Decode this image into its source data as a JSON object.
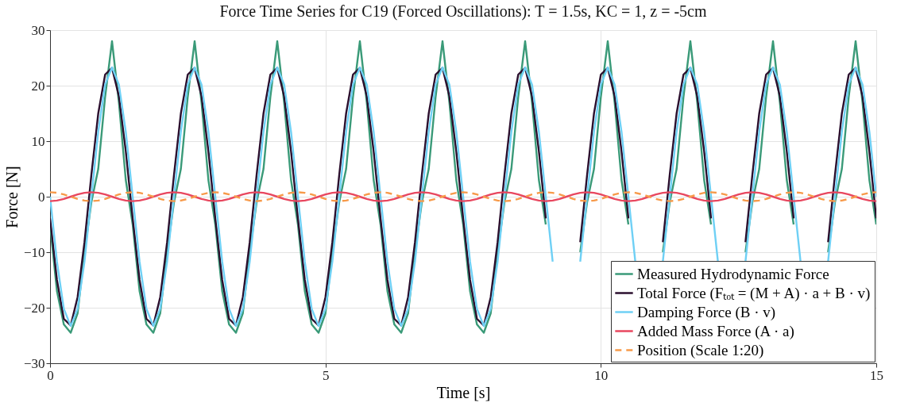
{
  "chart_data": {
    "type": "line",
    "title": "Force Time Series for C19 (Forced Oscillations): T = 1.5s, KC = 1, z = -5cm",
    "xlabel": "Time [s]",
    "ylabel": "Force [N]",
    "xlim": [
      0,
      15
    ],
    "xticks": [
      0,
      5,
      10,
      15
    ],
    "ylim": [
      -30,
      30
    ],
    "yticks": [
      -30,
      -20,
      -10,
      0,
      10,
      20,
      30
    ],
    "grid": true,
    "legend": "bottom right",
    "marker": "none",
    "x": [
      0,
      0.125,
      0.25,
      0.375,
      0.5,
      0.625,
      0.75,
      0.875,
      1,
      1.125,
      1.25,
      1.375,
      1.5,
      1.625,
      1.75,
      1.875,
      2,
      2.125,
      2.25,
      2.375,
      2.5,
      2.625,
      2.75,
      2.875,
      3,
      3.125,
      3.25,
      3.375,
      3.5,
      3.625,
      3.75,
      3.875,
      4,
      4.125,
      4.25,
      4.375,
      4.5,
      4.625,
      4.75,
      4.875,
      5,
      5.125,
      5.25,
      5.375,
      5.5,
      5.625,
      5.75,
      5.875,
      6,
      6.125,
      6.25,
      6.375,
      6.5,
      6.625,
      6.75,
      6.875,
      7,
      7.125,
      7.25,
      7.375,
      7.5,
      7.625,
      7.75,
      7.875,
      8,
      8.125,
      8.25,
      8.375,
      8.5,
      8.625,
      8.75,
      8.875,
      9,
      9.125,
      9.25,
      9.375,
      9.5,
      9.625,
      9.75,
      9.875,
      10,
      10.125,
      10.25,
      10.375,
      10.5,
      10.625,
      10.75,
      10.875,
      11,
      11.125,
      11.25,
      11.375,
      11.5,
      11.625,
      11.75,
      11.875,
      12,
      12.125,
      12.25,
      12.375,
      12.5,
      12.625,
      12.75,
      12.875,
      13,
      13.125,
      13.25,
      13.375,
      13.5,
      13.625,
      13.75,
      13.875,
      14,
      14.125,
      14.25,
      14.375,
      14.5,
      14.625,
      14.75,
      14.875,
      15
    ],
    "series": [
      {
        "name": "Measured Hydrodynamic Force",
        "color": "#3a9a78",
        "line_style": "solid",
        "values": [
          -5,
          -17,
          -23,
          -24.5,
          -21,
          -10,
          -1,
          5,
          18,
          28,
          17,
          3,
          -5,
          -17,
          -23,
          -24.5,
          -21,
          -10,
          -1,
          5,
          18,
          28,
          17,
          3,
          -5,
          -17,
          -23,
          -24.5,
          -21,
          -10,
          -1,
          5,
          18,
          28,
          17,
          3,
          -5,
          -17,
          -23,
          -24.5,
          -21,
          -10,
          -1,
          5,
          18,
          28,
          17,
          3,
          -5,
          -17,
          -23,
          -24.5,
          -21,
          -10,
          -1,
          5,
          18,
          28,
          17,
          3,
          -5,
          -17,
          -23,
          -24.5,
          -21,
          -10,
          -1,
          5,
          18,
          28,
          17,
          3,
          -5,
          null,
          null,
          null,
          null,
          -10,
          -1,
          5,
          18,
          28,
          17,
          3,
          -5,
          null,
          null,
          null,
          null,
          -10,
          -1,
          5,
          18,
          28,
          17,
          3,
          -5,
          null,
          null,
          null,
          null,
          -10,
          -1,
          5,
          18,
          28,
          17,
          3,
          -5,
          null,
          null,
          null,
          null,
          -10,
          -1,
          5,
          18,
          28,
          17,
          3,
          -5
        ]
      },
      {
        "name": "Total Force (Fₜₒₜ = (M + A) · a + B · v)",
        "color": "#2b0f2e",
        "line_style": "solid",
        "values": [
          -3.9,
          -15,
          -22,
          -23.2,
          -18.1,
          -8.2,
          3.9,
          15,
          22,
          23.2,
          18.1,
          8.2,
          -3.9,
          -15,
          -22,
          -23.2,
          -18.1,
          -8.2,
          3.9,
          15,
          22,
          23.2,
          18.1,
          8.2,
          -3.9,
          -15,
          -22,
          -23.2,
          -18.1,
          -8.2,
          3.9,
          15,
          22,
          23.2,
          18.1,
          8.2,
          -3.9,
          -15,
          -22,
          -23.2,
          -18.1,
          -8.2,
          3.9,
          15,
          22,
          23.2,
          18.1,
          8.2,
          -3.9,
          -15,
          -22,
          -23.2,
          -18.1,
          -8.2,
          3.9,
          15,
          22,
          23.2,
          18.1,
          8.2,
          -3.9,
          -15,
          -22,
          -23.2,
          -18.1,
          -8.2,
          3.9,
          15,
          22,
          23.2,
          18.1,
          8.2,
          -3.9,
          null,
          null,
          null,
          null,
          -8.2,
          3.9,
          15,
          22,
          23.2,
          18.1,
          8.2,
          -3.9,
          null,
          null,
          null,
          null,
          -8.2,
          3.9,
          15,
          22,
          23.2,
          18.1,
          8.2,
          -3.9,
          null,
          null,
          null,
          null,
          -8.2,
          3.9,
          15,
          22,
          23.2,
          18.1,
          8.2,
          -3.9,
          null,
          null,
          null,
          null,
          -8.2,
          3.9,
          15,
          22,
          23.2,
          18.1,
          8.2,
          -3.9
        ]
      },
      {
        "name": "Damping Force (B · v)",
        "color": "#6fd0f5",
        "line_style": "solid",
        "values": [
          0,
          -11.7,
          -20.2,
          -23.3,
          -20.2,
          -11.7,
          0,
          11.7,
          20.2,
          23.3,
          20.2,
          11.7,
          0,
          -11.7,
          -20.2,
          -23.3,
          -20.2,
          -11.7,
          0,
          11.7,
          20.2,
          23.3,
          20.2,
          11.7,
          0,
          -11.7,
          -20.2,
          -23.3,
          -20.2,
          -11.7,
          0,
          11.7,
          20.2,
          23.3,
          20.2,
          11.7,
          0,
          -11.7,
          -20.2,
          -23.3,
          -20.2,
          -11.7,
          0,
          11.7,
          20.2,
          23.3,
          20.2,
          11.7,
          0,
          -11.7,
          -20.2,
          -23.3,
          -20.2,
          -11.7,
          0,
          11.7,
          20.2,
          23.3,
          20.2,
          11.7,
          0,
          -11.7,
          -20.2,
          -23.3,
          -20.2,
          -11.7,
          0,
          11.7,
          20.2,
          23.3,
          20.2,
          11.7,
          0,
          -11.7,
          null,
          null,
          null,
          -11.7,
          0,
          11.7,
          20.2,
          23.3,
          20.2,
          11.7,
          0,
          -11.7,
          null,
          null,
          null,
          -11.7,
          0,
          11.7,
          20.2,
          23.3,
          20.2,
          11.7,
          0,
          -11.7,
          null,
          null,
          null,
          -11.7,
          0,
          11.7,
          20.2,
          23.3,
          20.2,
          11.7,
          0,
          -11.7,
          null,
          null,
          null,
          -11.7,
          0,
          11.7,
          20.2,
          23.3,
          20.2,
          11.7,
          0
        ]
      },
      {
        "name": "Added Mass Force (A · a)",
        "color": "#e8475f",
        "line_style": "solid",
        "values": [
          -0.8,
          -0.7,
          -0.4,
          0,
          0.4,
          0.7,
          0.8,
          0.7,
          0.4,
          0,
          -0.4,
          -0.7,
          -0.8,
          -0.7,
          -0.4,
          0,
          0.4,
          0.7,
          0.8,
          0.7,
          0.4,
          0,
          -0.4,
          -0.7,
          -0.8,
          -0.7,
          -0.4,
          0,
          0.4,
          0.7,
          0.8,
          0.7,
          0.4,
          0,
          -0.4,
          -0.7,
          -0.8,
          -0.7,
          -0.4,
          0,
          0.4,
          0.7,
          0.8,
          0.7,
          0.4,
          0,
          -0.4,
          -0.7,
          -0.8,
          -0.7,
          -0.4,
          0,
          0.4,
          0.7,
          0.8,
          0.7,
          0.4,
          0,
          -0.4,
          -0.7,
          -0.8,
          -0.7,
          -0.4,
          0,
          0.4,
          0.7,
          0.8,
          0.7,
          0.4,
          0,
          -0.4,
          -0.7,
          -0.8,
          -0.7,
          -0.4,
          0,
          0.4,
          0.7,
          0.8,
          0.7,
          0.4,
          0,
          -0.4,
          -0.7,
          -0.8,
          -0.7,
          -0.4,
          0,
          0.4,
          0.7,
          0.8,
          0.7,
          0.4,
          0,
          -0.4,
          -0.7,
          -0.8,
          -0.7,
          -0.4,
          0,
          0.4,
          0.7,
          0.8,
          0.7,
          0.4,
          0,
          -0.4,
          -0.7,
          -0.8,
          -0.7,
          -0.4,
          0,
          0.4,
          0.7,
          0.8,
          0.7,
          0.4,
          0,
          -0.4,
          -0.7,
          -0.8
        ]
      },
      {
        "name": "Position (Scale 1:20)",
        "color": "#f79a4a",
        "line_style": "dashed",
        "values": [
          0.8,
          0.7,
          0.4,
          0,
          -0.4,
          -0.7,
          -0.8,
          -0.7,
          -0.4,
          0,
          0.4,
          0.7,
          0.8,
          0.7,
          0.4,
          0,
          -0.4,
          -0.7,
          -0.8,
          -0.7,
          -0.4,
          0,
          0.4,
          0.7,
          0.8,
          0.7,
          0.4,
          0,
          -0.4,
          -0.7,
          -0.8,
          -0.7,
          -0.4,
          0,
          0.4,
          0.7,
          0.8,
          0.7,
          0.4,
          0,
          -0.4,
          -0.7,
          -0.8,
          -0.7,
          -0.4,
          0,
          0.4,
          0.7,
          0.8,
          0.7,
          0.4,
          0,
          -0.4,
          -0.7,
          -0.8,
          -0.7,
          -0.4,
          0,
          0.4,
          0.7,
          0.8,
          0.7,
          0.4,
          0,
          -0.4,
          -0.7,
          -0.8,
          -0.7,
          -0.4,
          0,
          0.4,
          0.7,
          0.8,
          0.7,
          0.4,
          0,
          -0.4,
          -0.7,
          -0.8,
          -0.7,
          -0.4,
          0,
          0.4,
          0.7,
          0.8,
          0.7,
          0.4,
          0,
          -0.4,
          -0.7,
          -0.8,
          -0.7,
          -0.4,
          0,
          0.4,
          0.7,
          0.8,
          0.7,
          0.4,
          0,
          -0.4,
          -0.7,
          -0.8,
          -0.7,
          -0.4,
          0,
          0.4,
          0.7,
          0.8,
          0.7,
          0.4,
          0,
          -0.4,
          -0.7,
          -0.8,
          -0.7,
          -0.4,
          0,
          0.4,
          0.7,
          0.8
        ]
      }
    ]
  }
}
